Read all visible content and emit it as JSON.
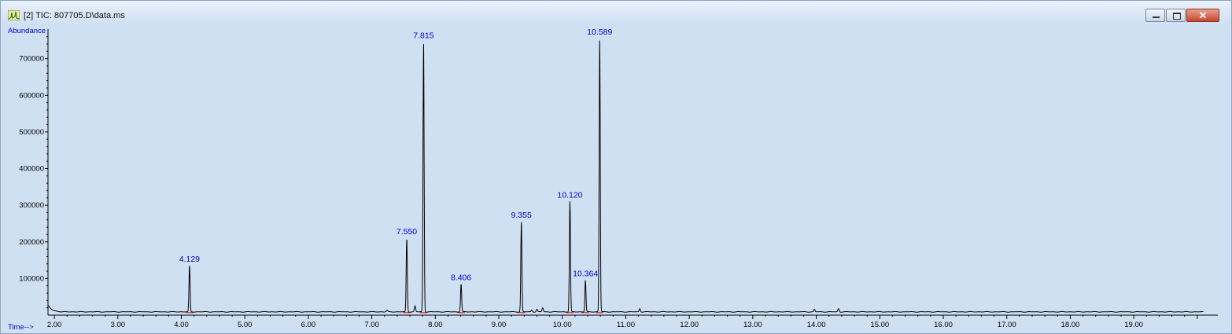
{
  "window": {
    "title": "[2] TIC: 807705.D\\data.ms",
    "icon": "chromatogram-app-icon",
    "buttons": {
      "minimize": "minimize-icon",
      "maximize": "maximize-icon",
      "close": "close-icon"
    }
  },
  "colors": {
    "plot_bg": "#cfe0f3",
    "trace": "#000000",
    "peak_label": "#0000cc",
    "axis_label": "#0000cc",
    "baseline": "#cc0000"
  },
  "chart_data": {
    "type": "line",
    "ylabel": "Abundance",
    "xlabel": "Time-->",
    "xlim": [
      1.9,
      20.2
    ],
    "ylim": [
      0,
      770000
    ],
    "x_ticks": [
      2,
      3,
      4,
      5,
      6,
      7,
      8,
      9,
      10,
      11,
      12,
      13,
      14,
      15,
      16,
      17,
      18,
      19
    ],
    "x_tick_labels": [
      "2.00",
      "3.00",
      "4.00",
      "5.00",
      "6.00",
      "7.00",
      "8.00",
      "9.00",
      "10.00",
      "11.00",
      "12.00",
      "13.00",
      "14.00",
      "15.00",
      "16.00",
      "17.00",
      "18.00",
      "19.00"
    ],
    "y_ticks": [
      100000,
      200000,
      300000,
      400000,
      500000,
      600000,
      700000
    ],
    "y_tick_labels": [
      "100000",
      "200000",
      "300000",
      "400000",
      "500000",
      "600000",
      "700000"
    ],
    "baseline": 9000,
    "peaks": [
      {
        "rt": 4.129,
        "height": 135000,
        "label": "4.129"
      },
      {
        "rt": 7.55,
        "height": 210000,
        "label": "7.550"
      },
      {
        "rt": 7.815,
        "height": 745000,
        "label": "7.815"
      },
      {
        "rt": 8.406,
        "height": 85000,
        "label": "8.406"
      },
      {
        "rt": 9.355,
        "height": 255000,
        "label": "9.355"
      },
      {
        "rt": 10.12,
        "height": 310000,
        "label": "10.120"
      },
      {
        "rt": 10.364,
        "height": 95000,
        "label": "10.364"
      },
      {
        "rt": 10.589,
        "height": 755000,
        "label": "10.589"
      }
    ],
    "minor_peaks": [
      {
        "rt": 7.24,
        "height": 13000
      },
      {
        "rt": 7.68,
        "height": 25000
      },
      {
        "rt": 9.52,
        "height": 14000
      },
      {
        "rt": 9.6,
        "height": 16000
      },
      {
        "rt": 9.69,
        "height": 20000
      },
      {
        "rt": 11.22,
        "height": 18000
      },
      {
        "rt": 13.97,
        "height": 16000
      },
      {
        "rt": 14.35,
        "height": 18000
      }
    ]
  }
}
